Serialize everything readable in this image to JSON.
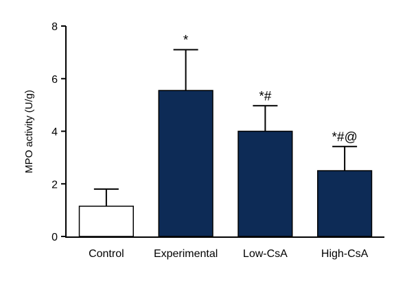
{
  "chart_data": {
    "type": "bar",
    "categories": [
      "Control",
      "Experimental",
      "Low-CsA",
      "High-CsA"
    ],
    "values": [
      1.15,
      5.55,
      4.0,
      2.5
    ],
    "error_upper": [
      1.8,
      7.1,
      4.97,
      3.42
    ],
    "significance": [
      "",
      "*",
      "*#",
      "*#@"
    ],
    "bar_colors": [
      "#ffffff",
      "#0d2b56",
      "#0d2b56",
      "#0d2b56"
    ],
    "title": "",
    "xlabel": "",
    "ylabel": "MPO activity (U/g)",
    "ylim": [
      0,
      8
    ],
    "yticks": [
      0,
      2,
      4,
      6,
      8
    ],
    "grid": false,
    "legend": "none"
  }
}
